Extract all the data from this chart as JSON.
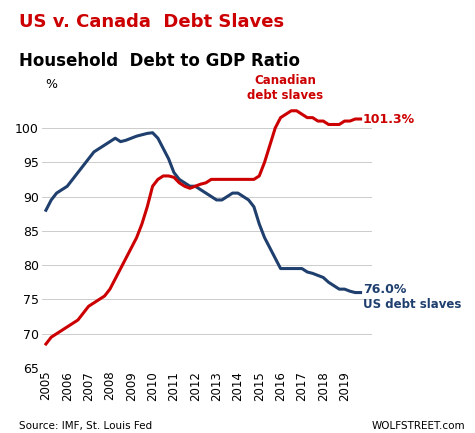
{
  "title1": "US v. Canada  Debt Slaves",
  "title2": "Household  Debt to GDP Ratio",
  "ylabel": "%",
  "source_text": "Source: IMF, St. Louis Fed",
  "watermark": "WOLFSTREET.com",
  "ylim": [
    65,
    105
  ],
  "yticks": [
    65,
    70,
    75,
    80,
    85,
    90,
    95,
    100
  ],
  "us_label": "US debt slaves",
  "canada_label": "Canadian\ndebt slaves",
  "us_value_label": "76.0%",
  "canada_value_label": "101.3%",
  "us_color": "#1f3f6e",
  "canada_color": "#cc0000",
  "us_data": [
    [
      2005.0,
      88.0
    ],
    [
      2005.25,
      89.5
    ],
    [
      2005.5,
      90.5
    ],
    [
      2005.75,
      91.0
    ],
    [
      2006.0,
      91.5
    ],
    [
      2006.25,
      92.5
    ],
    [
      2006.5,
      93.5
    ],
    [
      2006.75,
      94.5
    ],
    [
      2007.0,
      95.5
    ],
    [
      2007.25,
      96.5
    ],
    [
      2007.5,
      97.0
    ],
    [
      2007.75,
      97.5
    ],
    [
      2008.0,
      98.0
    ],
    [
      2008.25,
      98.5
    ],
    [
      2008.5,
      98.0
    ],
    [
      2008.75,
      98.2
    ],
    [
      2009.0,
      98.5
    ],
    [
      2009.25,
      98.8
    ],
    [
      2009.5,
      99.0
    ],
    [
      2009.75,
      99.2
    ],
    [
      2010.0,
      99.3
    ],
    [
      2010.25,
      98.5
    ],
    [
      2010.5,
      97.0
    ],
    [
      2010.75,
      95.5
    ],
    [
      2011.0,
      93.5
    ],
    [
      2011.25,
      92.5
    ],
    [
      2011.5,
      92.0
    ],
    [
      2011.75,
      91.5
    ],
    [
      2012.0,
      91.5
    ],
    [
      2012.25,
      91.0
    ],
    [
      2012.5,
      90.5
    ],
    [
      2012.75,
      90.0
    ],
    [
      2013.0,
      89.5
    ],
    [
      2013.25,
      89.5
    ],
    [
      2013.5,
      90.0
    ],
    [
      2013.75,
      90.5
    ],
    [
      2014.0,
      90.5
    ],
    [
      2014.25,
      90.0
    ],
    [
      2014.5,
      89.5
    ],
    [
      2014.75,
      88.5
    ],
    [
      2015.0,
      86.0
    ],
    [
      2015.25,
      84.0
    ],
    [
      2015.5,
      82.5
    ],
    [
      2015.75,
      81.0
    ],
    [
      2016.0,
      79.5
    ],
    [
      2016.25,
      79.5
    ],
    [
      2016.5,
      79.5
    ],
    [
      2016.75,
      79.5
    ],
    [
      2017.0,
      79.5
    ],
    [
      2017.25,
      79.0
    ],
    [
      2017.5,
      78.8
    ],
    [
      2017.75,
      78.5
    ],
    [
      2018.0,
      78.2
    ],
    [
      2018.25,
      77.5
    ],
    [
      2018.5,
      77.0
    ],
    [
      2018.75,
      76.5
    ],
    [
      2019.0,
      76.5
    ],
    [
      2019.25,
      76.2
    ],
    [
      2019.5,
      76.0
    ],
    [
      2019.75,
      76.0
    ]
  ],
  "canada_data": [
    [
      2005.0,
      68.5
    ],
    [
      2005.25,
      69.5
    ],
    [
      2005.5,
      70.0
    ],
    [
      2005.75,
      70.5
    ],
    [
      2006.0,
      71.0
    ],
    [
      2006.25,
      71.5
    ],
    [
      2006.5,
      72.0
    ],
    [
      2006.75,
      73.0
    ],
    [
      2007.0,
      74.0
    ],
    [
      2007.25,
      74.5
    ],
    [
      2007.5,
      75.0
    ],
    [
      2007.75,
      75.5
    ],
    [
      2008.0,
      76.5
    ],
    [
      2008.25,
      78.0
    ],
    [
      2008.5,
      79.5
    ],
    [
      2008.75,
      81.0
    ],
    [
      2009.0,
      82.5
    ],
    [
      2009.25,
      84.0
    ],
    [
      2009.5,
      86.0
    ],
    [
      2009.75,
      88.5
    ],
    [
      2010.0,
      91.5
    ],
    [
      2010.25,
      92.5
    ],
    [
      2010.5,
      93.0
    ],
    [
      2010.75,
      93.0
    ],
    [
      2011.0,
      92.8
    ],
    [
      2011.25,
      92.0
    ],
    [
      2011.5,
      91.5
    ],
    [
      2011.75,
      91.2
    ],
    [
      2012.0,
      91.5
    ],
    [
      2012.25,
      91.8
    ],
    [
      2012.5,
      92.0
    ],
    [
      2012.75,
      92.5
    ],
    [
      2013.0,
      92.5
    ],
    [
      2013.25,
      92.5
    ],
    [
      2013.5,
      92.5
    ],
    [
      2013.75,
      92.5
    ],
    [
      2014.0,
      92.5
    ],
    [
      2014.25,
      92.5
    ],
    [
      2014.5,
      92.5
    ],
    [
      2014.75,
      92.5
    ],
    [
      2015.0,
      93.0
    ],
    [
      2015.25,
      95.0
    ],
    [
      2015.5,
      97.5
    ],
    [
      2015.75,
      100.0
    ],
    [
      2016.0,
      101.5
    ],
    [
      2016.25,
      102.0
    ],
    [
      2016.5,
      102.5
    ],
    [
      2016.75,
      102.5
    ],
    [
      2017.0,
      102.0
    ],
    [
      2017.25,
      101.5
    ],
    [
      2017.5,
      101.5
    ],
    [
      2017.75,
      101.0
    ],
    [
      2018.0,
      101.0
    ],
    [
      2018.25,
      100.5
    ],
    [
      2018.5,
      100.5
    ],
    [
      2018.75,
      100.5
    ],
    [
      2019.0,
      101.0
    ],
    [
      2019.25,
      101.0
    ],
    [
      2019.5,
      101.3
    ],
    [
      2019.75,
      101.3
    ]
  ]
}
